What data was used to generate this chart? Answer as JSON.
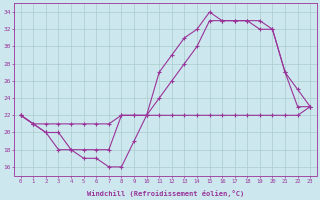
{
  "xlabel": "Windchill (Refroidissement éolien,°C)",
  "bg_color": "#cce8ee",
  "line_color": "#993399",
  "grid_color": "#aacccc",
  "ylim": [
    15,
    35
  ],
  "xlim": [
    -0.5,
    23.5
  ],
  "yticks": [
    16,
    18,
    20,
    22,
    24,
    26,
    28,
    30,
    32,
    34
  ],
  "xticks": [
    0,
    1,
    2,
    3,
    4,
    5,
    6,
    7,
    8,
    9,
    10,
    11,
    12,
    13,
    14,
    15,
    16,
    17,
    18,
    19,
    20,
    21,
    22,
    23
  ],
  "series": [
    {
      "x": [
        0,
        1,
        2,
        3,
        4,
        5,
        6,
        7,
        8,
        9,
        10,
        11,
        12,
        13,
        14,
        15,
        16,
        17,
        18,
        19,
        20,
        21,
        22,
        23
      ],
      "y": [
        22,
        21,
        21,
        21,
        21,
        21,
        21,
        21,
        22,
        22,
        22,
        22,
        22,
        22,
        22,
        22,
        22,
        22,
        22,
        22,
        22,
        22,
        22,
        23
      ]
    },
    {
      "x": [
        0,
        1,
        2,
        3,
        4,
        5,
        6,
        7,
        8,
        9,
        10,
        11,
        12,
        13,
        14,
        15,
        16,
        17,
        18,
        19,
        20,
        21,
        22,
        23
      ],
      "y": [
        22,
        21,
        20,
        20,
        18,
        18,
        18,
        18,
        22,
        22,
        22,
        24,
        26,
        28,
        30,
        33,
        33,
        33,
        33,
        32,
        32,
        27,
        23,
        23
      ]
    },
    {
      "x": [
        0,
        1,
        2,
        3,
        4,
        5,
        6,
        7,
        8,
        9,
        10,
        11,
        12,
        13,
        14,
        15,
        16,
        17,
        18,
        19,
        20,
        21,
        22,
        23
      ],
      "y": [
        22,
        21,
        20,
        18,
        18,
        17,
        17,
        16,
        16,
        19,
        22,
        27,
        29,
        31,
        32,
        34,
        33,
        33,
        33,
        33,
        32,
        27,
        25,
        23
      ]
    }
  ]
}
